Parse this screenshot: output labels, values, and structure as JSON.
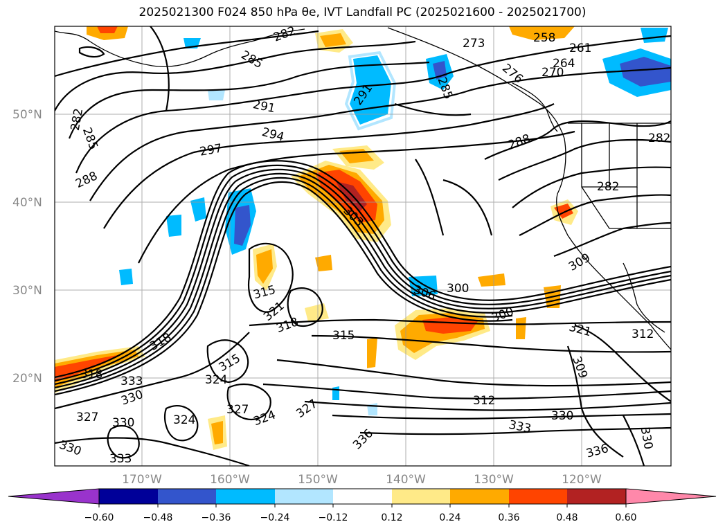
{
  "title": "2025021300 F024 850 hPa θe, IVT Landfall PC (2025021600 - 2025021700)",
  "map": {
    "lat_labels": [
      "50°N",
      "40°N",
      "30°N",
      "20°N"
    ],
    "lon_labels": [
      "170°W",
      "160°W",
      "150°W",
      "140°W",
      "130°W",
      "120°W"
    ],
    "contour_labels": [
      "258",
      "261",
      "264",
      "270",
      "276",
      "273",
      "282",
      "285",
      "285",
      "282",
      "291",
      "291",
      "294",
      "297",
      "285",
      "288",
      "282",
      "288",
      "282",
      "303",
      "309",
      "300",
      "306",
      "300",
      "321",
      "312",
      "315",
      "315",
      "318",
      "318",
      "321",
      "315",
      "324",
      "318",
      "327",
      "324",
      "324",
      "327",
      "330",
      "333",
      "327",
      "330",
      "333",
      "330",
      "336",
      "330",
      "336",
      "333",
      "330",
      "309",
      "312"
    ]
  },
  "colorbar": {
    "ticks": [
      "−0.60",
      "−0.48",
      "−0.36",
      "−0.24",
      "−0.12",
      "0.12",
      "0.24",
      "0.36",
      "0.48",
      "0.60"
    ],
    "colors": [
      "#9933cc",
      "#000099",
      "#3355cc",
      "#00bbff",
      "#b2e6ff",
      "#ffffff",
      "#ffea88",
      "#ffaa00",
      "#ff4400",
      "#b22222",
      "#ff88aa"
    ]
  }
}
